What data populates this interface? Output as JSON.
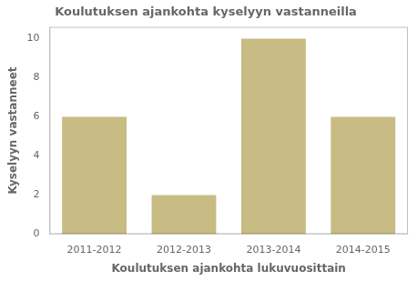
{
  "chart_data": {
    "type": "bar",
    "title": "Koulutuksen ajankohta kyselyyn vastanneilla",
    "xlabel": "Koulutuksen ajankohta lukuvuosittain",
    "ylabel": "Kyselyyn vastanneet",
    "categories": [
      "2011-2012",
      "2012-2013",
      "2013-2014",
      "2014-2015"
    ],
    "values": [
      6,
      2,
      10,
      6
    ],
    "color": "#c8bc84",
    "ylim": [
      0,
      10.6
    ],
    "yticks": [
      0,
      2,
      4,
      6,
      8,
      10
    ],
    "grid": false
  }
}
